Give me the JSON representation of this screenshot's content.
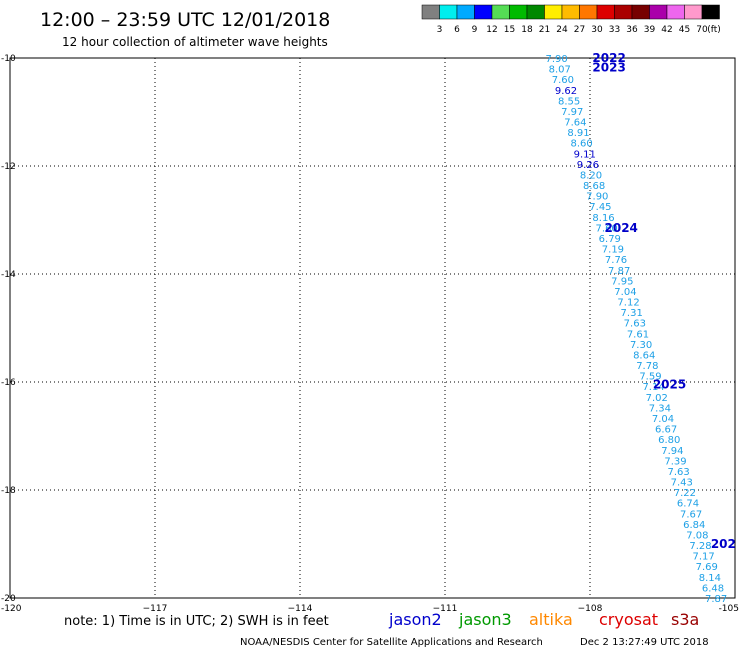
{
  "title": "12:00 – 23:59 UTC 12/01/2018",
  "subtitle": "12 hour collection of altimeter wave heights",
  "color_scale": {
    "labels": [
      "3",
      "6",
      "9",
      "12",
      "15",
      "18",
      "21",
      "24",
      "27",
      "30",
      "33",
      "36",
      "39",
      "42",
      "45",
      "70"
    ],
    "unit": "(ft)",
    "colors": [
      "#808080",
      "#00eeee",
      "#00aaff",
      "#0000ff",
      "#55dd55",
      "#00bb00",
      "#008800",
      "#ffee00",
      "#ffbb00",
      "#ff7700",
      "#dd0000",
      "#aa0000",
      "#770000",
      "#aa00aa",
      "#ee66ee",
      "#ff99cc",
      "#000000"
    ]
  },
  "note": "note: 1) Time is in UTC; 2) SWH is in feet",
  "satellites": [
    {
      "name": "jason2",
      "color": "#0000cc"
    },
    {
      "name": "jason3",
      "color": "#009900"
    },
    {
      "name": "altika",
      "color": "#ff8800"
    },
    {
      "name": "cryosat",
      "color": "#dd0000"
    },
    {
      "name": "s3a",
      "color": "#990000"
    }
  ],
  "footer_left": "NOAA/NESDIS Center for Satellite Applications and Research",
  "footer_right": "Dec  2 13:27:49 UTC 2018",
  "chart_data": {
    "type": "scatter",
    "title": "12:00 – 23:59 UTC 12/01/2018",
    "subtitle": "12 hour collection of altimeter wave heights",
    "xlim": [
      -120,
      -105
    ],
    "ylim": [
      -20,
      -10
    ],
    "x_ticks": [
      -120,
      -117,
      -114,
      -111,
      -108,
      -105
    ],
    "x_tick_labels": [
      "-120",
      "−117",
      "−114",
      "−111",
      "−108",
      "-105"
    ],
    "y_ticks": [
      -20,
      -18,
      -16,
      -14,
      -12,
      -10
    ],
    "y_tick_labels": [
      "-20",
      "-18",
      "-16",
      "-14",
      "-12",
      "-10"
    ],
    "grid": "dotted",
    "track": {
      "x_start": -108.9,
      "y_start": -10.0,
      "x_end": -105.6,
      "y_end": -20.0,
      "color": "#1ea0e6",
      "highlight_color": "#0000cc"
    },
    "swh_values": [
      "7.90",
      "8.07",
      "7.60",
      "9.62",
      "8.55",
      "7.97",
      "7.64",
      "8.91",
      "8.60",
      "9.11",
      "9.26",
      "8.20",
      "8.68",
      "7.90",
      "7.45",
      "8.16",
      "7.60",
      "6.79",
      "7.19",
      "7.76",
      "7.87",
      "7.95",
      "7.04",
      "7.12",
      "7.31",
      "7.63",
      "7.61",
      "7.30",
      "8.64",
      "7.78",
      "7.59",
      "7.14",
      "7.02",
      "7.34",
      "7.04",
      "6.67",
      "6.80",
      "7.94",
      "7.39",
      "7.63",
      "7.43",
      "7.22",
      "6.74",
      "7.67",
      "6.84",
      "7.08",
      "7.28",
      "7.17",
      "7.69",
      "8.14",
      "6.48",
      "7.87"
    ],
    "cycle_labels": [
      {
        "text": "2022",
        "x": -107.95,
        "y": -10.0
      },
      {
        "text": "2023",
        "x": -107.95,
        "y": -10.18
      },
      {
        "text": "2024",
        "x": -107.7,
        "y": -13.15
      },
      {
        "text": "2025",
        "x": -106.7,
        "y": -16.05
      },
      {
        "text": "202",
        "x": -105.5,
        "y": -19.0
      }
    ]
  }
}
